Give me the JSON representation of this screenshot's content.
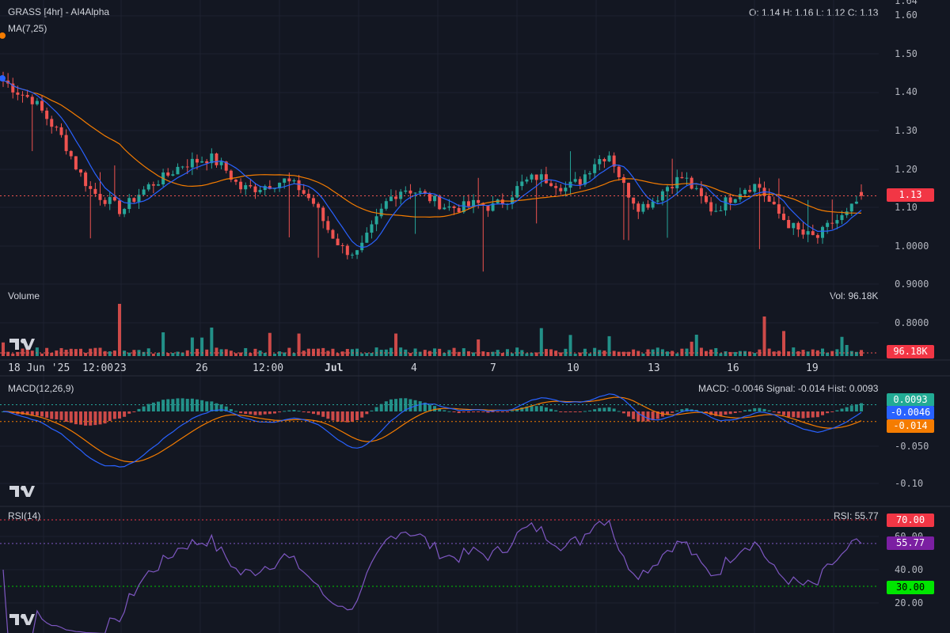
{
  "header": {
    "symbol_title": "GRASS [4hr] - AI4Alpha",
    "ma_label": "MA(7,25)",
    "ohlc": "O: 1.14 H: 1.16 L: 1.12 C: 1.13"
  },
  "volume_panel": {
    "label": "Volume",
    "value_text": "Vol: 96.18K",
    "tag": "96.18K"
  },
  "macd_panel": {
    "label": "MACD(12,26,9)",
    "readout": "MACD: -0.0046 Signal: -0.014 Hist: 0.0093",
    "tags": {
      "hist": "0.0093",
      "macd": "-0.0046",
      "signal": "-0.014"
    },
    "ticks": [
      "-0.050",
      "-0.10"
    ]
  },
  "rsi_panel": {
    "label": "RSI(14)",
    "readout": "RSI: 55.77",
    "tags": {
      "upper": "70.00",
      "value": "55.77",
      "lower": "30.00"
    },
    "ticks": [
      "60.00",
      "40.00",
      "20.00"
    ]
  },
  "price_axis": {
    "ticks": [
      "1.64",
      "1.60",
      "1.50",
      "1.40",
      "1.30",
      "1.20",
      "1.10",
      "1.0000",
      "0.9000",
      "0.8000"
    ],
    "last_price_tag": "1.13"
  },
  "time_axis": {
    "ticks": [
      "18 Jun '25",
      "12:00",
      "23",
      "26",
      "12:00",
      "Jul",
      "4",
      "7",
      "10",
      "13",
      "16",
      "19"
    ]
  },
  "colors": {
    "background": "#131722",
    "up": "#26a69a",
    "down": "#ef5350",
    "ma_fast": "#2962ff",
    "ma_slow": "#f57c00",
    "rsi": "#7e57c2",
    "tag_red": "#f23645",
    "tag_teal": "#22ab94",
    "tag_blue": "#2962ff",
    "tag_orange": "#f57c00",
    "tag_green": "#00e600",
    "tag_purple": "#7b1fa2"
  },
  "icons": [
    "tradingview-logo-icon"
  ],
  "chart_data": {
    "type": "candlestick",
    "interval": "4hr",
    "last_close": 1.13,
    "last_ohlc": {
      "open": 1.14,
      "high": 1.16,
      "low": 1.12,
      "close": 1.13
    },
    "price_range": [
      0.8,
      1.64
    ],
    "approx_closes": [
      1.43,
      1.4,
      1.38,
      1.33,
      1.28,
      1.2,
      1.14,
      1.12,
      1.09,
      1.13,
      1.16,
      1.18,
      1.21,
      1.22,
      1.23,
      1.2,
      1.15,
      1.15,
      1.16,
      1.17,
      1.15,
      1.11,
      1.04,
      0.99,
      0.98,
      1.05,
      1.12,
      1.15,
      1.14,
      1.12,
      1.1,
      1.1,
      1.11,
      1.1,
      1.12,
      1.16,
      1.18,
      1.17,
      1.15,
      1.17,
      1.22,
      1.24,
      1.15,
      1.1,
      1.12,
      1.16,
      1.18,
      1.13,
      1.09,
      1.12,
      1.15,
      1.16,
      1.1,
      1.06,
      1.03,
      1.02,
      1.06,
      1.08,
      1.13
    ],
    "volume_last": "96.18K",
    "macd": {
      "macd": -0.0046,
      "signal": -0.014,
      "hist": 0.0093
    },
    "rsi": {
      "value": 55.77,
      "upper": 70,
      "lower": 30
    }
  }
}
